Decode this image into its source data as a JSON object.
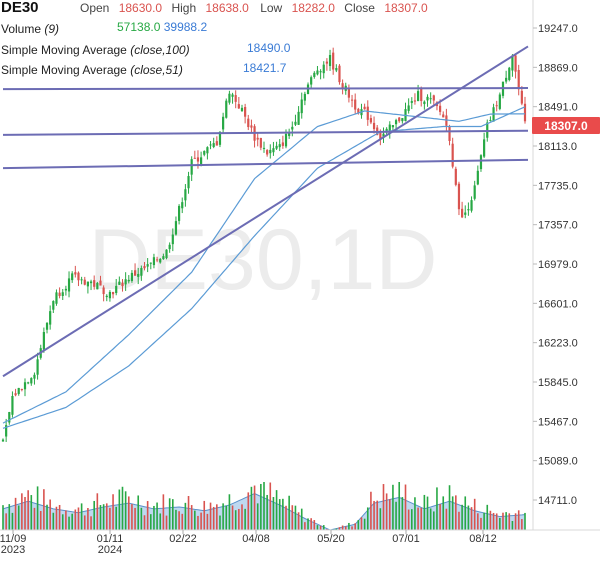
{
  "header": {
    "symbol": "DE30",
    "open_label": "Open",
    "open": "18630.0",
    "high_label": "High",
    "high": "18638.0",
    "low_label": "Low",
    "low": "18282.0",
    "close_label": "Close",
    "close": "18307.0",
    "volume_label": "Volume",
    "volume_param": "(9)",
    "volume_a": "57138.0",
    "volume_b": "39988.2",
    "sma100_label": "Simple Moving Average",
    "sma100_param": "(close,100)",
    "sma100_value": "18490.0",
    "sma51_label": "Simple Moving Average",
    "sma51_param": "(close,51)",
    "sma51_value": "18421.7"
  },
  "watermark": "DE30,1D",
  "last_price_tag": "18307.0",
  "colors": {
    "up": "#27a844",
    "down": "#d9534f",
    "sma": "#5b9bd5",
    "trendline": "#6c6cb4",
    "volume_fill": "#b9d4ef",
    "tag": "#e94b4b"
  },
  "chart_data": {
    "type": "candlestick",
    "title": "DE30",
    "timeframe": "1D",
    "y_axis_ticks": [
      "19247.0",
      "18869.0",
      "18491.0",
      "18113.0",
      "17735.0",
      "17357.0",
      "16979.0",
      "16601.0",
      "16223.0",
      "15845.0",
      "15467.0",
      "15089.0",
      "14711.0"
    ],
    "x_axis_ticks": [
      {
        "label": "11/09",
        "sub": "2023"
      },
      {
        "label": "01/11",
        "sub": "2024"
      },
      {
        "label": "02/22",
        "sub": ""
      },
      {
        "label": "04/08",
        "sub": ""
      },
      {
        "label": "05/20",
        "sub": ""
      },
      {
        "label": "07/01",
        "sub": ""
      },
      {
        "label": "08/12",
        "sub": ""
      }
    ],
    "ylim": [
      14711,
      19247
    ],
    "last_close": 18307.0,
    "close_anchors": [
      [
        0,
        15250
      ],
      [
        3,
        15700
      ],
      [
        10,
        15950
      ],
      [
        16,
        16650
      ],
      [
        22,
        16850
      ],
      [
        28,
        16800
      ],
      [
        34,
        16700
      ],
      [
        40,
        16850
      ],
      [
        46,
        16950
      ],
      [
        52,
        17100
      ],
      [
        56,
        17500
      ],
      [
        60,
        17950
      ],
      [
        64,
        18050
      ],
      [
        68,
        18150
      ],
      [
        72,
        18650
      ],
      [
        76,
        18450
      ],
      [
        80,
        18200
      ],
      [
        84,
        18050
      ],
      [
        88,
        18100
      ],
      [
        92,
        18300
      ],
      [
        96,
        18650
      ],
      [
        100,
        18850
      ],
      [
        104,
        18950
      ],
      [
        108,
        18700
      ],
      [
        112,
        18500
      ],
      [
        116,
        18400
      ],
      [
        120,
        18200
      ],
      [
        124,
        18300
      ],
      [
        128,
        18450
      ],
      [
        132,
        18600
      ],
      [
        136,
        18550
      ],
      [
        140,
        18400
      ],
      [
        142,
        18200
      ],
      [
        144,
        17700
      ],
      [
        146,
        17400
      ],
      [
        150,
        17700
      ],
      [
        154,
        18300
      ],
      [
        158,
        18600
      ],
      [
        162,
        19000
      ],
      [
        164,
        18650
      ],
      [
        166,
        18307
      ]
    ],
    "sma100_anchors": [
      [
        0,
        15400
      ],
      [
        20,
        15600
      ],
      [
        40,
        16000
      ],
      [
        60,
        16550
      ],
      [
        80,
        17250
      ],
      [
        100,
        17900
      ],
      [
        120,
        18250
      ],
      [
        140,
        18300
      ],
      [
        152,
        18300
      ],
      [
        166,
        18490
      ]
    ],
    "sma51_anchors": [
      [
        0,
        15450
      ],
      [
        20,
        15750
      ],
      [
        40,
        16300
      ],
      [
        60,
        16900
      ],
      [
        80,
        17800
      ],
      [
        100,
        18300
      ],
      [
        115,
        18450
      ],
      [
        130,
        18400
      ],
      [
        145,
        18350
      ],
      [
        155,
        18420
      ],
      [
        166,
        18422
      ]
    ],
    "trendlines": [
      {
        "from": [
          0,
          15900
        ],
        "to": [
          168,
          19070
        ]
      },
      {
        "from": [
          0,
          18660
        ],
        "to": [
          168,
          18670
        ]
      },
      {
        "from": [
          0,
          18220
        ],
        "to": [
          168,
          18260
        ]
      },
      {
        "from": [
          0,
          17900
        ],
        "to": [
          168,
          17980
        ]
      }
    ],
    "volume_anchors": [
      [
        0,
        0.55
      ],
      [
        8,
        0.75
      ],
      [
        16,
        0.55
      ],
      [
        24,
        0.45
      ],
      [
        32,
        0.6
      ],
      [
        40,
        0.7
      ],
      [
        48,
        0.55
      ],
      [
        56,
        0.6
      ],
      [
        64,
        0.5
      ],
      [
        72,
        0.65
      ],
      [
        80,
        0.95
      ],
      [
        88,
        0.65
      ],
      [
        96,
        0.3
      ],
      [
        104,
        0.0
      ],
      [
        112,
        0.15
      ],
      [
        118,
        0.7
      ],
      [
        126,
        0.85
      ],
      [
        134,
        0.55
      ],
      [
        142,
        0.75
      ],
      [
        150,
        0.5
      ],
      [
        158,
        0.35
      ],
      [
        166,
        0.4
      ]
    ],
    "volume_scale_max": 60000
  }
}
